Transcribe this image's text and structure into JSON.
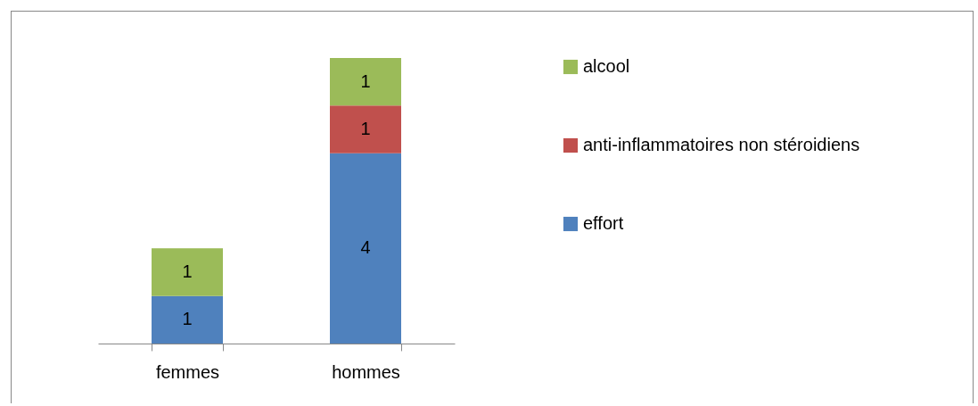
{
  "chart_data": {
    "type": "bar",
    "stacked": true,
    "categories": [
      "femmes",
      "hommes"
    ],
    "series": [
      {
        "name": "effort",
        "color": "#4f81bd",
        "values": [
          1,
          4
        ]
      },
      {
        "name": "anti-inflammatoires non stéroidiens",
        "color": "#c0504d",
        "values": [
          null,
          1
        ]
      },
      {
        "name": "alcool",
        "color": "#9bbb59",
        "values": [
          1,
          1
        ]
      }
    ],
    "data_labels": true,
    "legend": "right",
    "grid": false
  }
}
